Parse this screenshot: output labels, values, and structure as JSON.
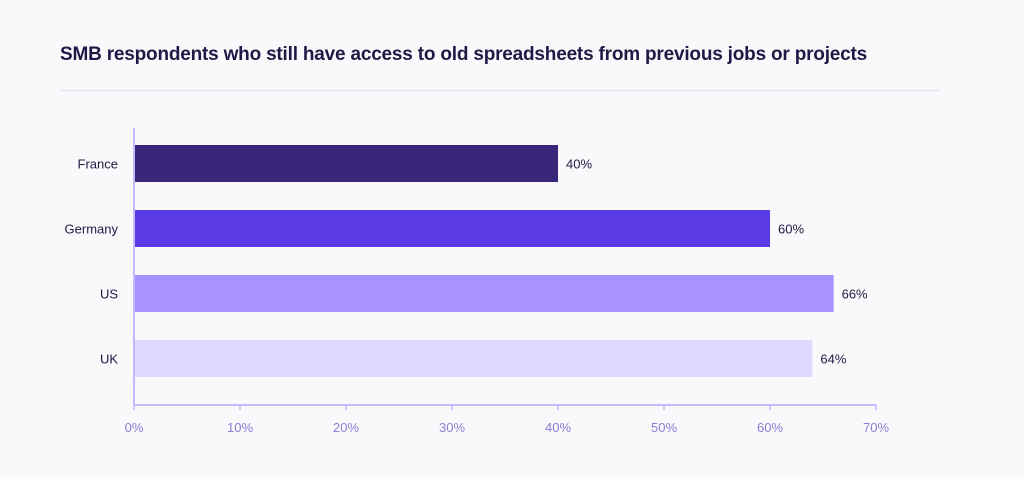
{
  "chart_data": {
    "type": "bar",
    "orientation": "horizontal",
    "title": "SMB respondents who still have access to old spreadsheets from previous jobs or projects",
    "categories": [
      "France",
      "Germany",
      "US",
      "UK"
    ],
    "values": [
      40,
      60,
      66,
      64
    ],
    "value_labels": [
      "40%",
      "60%",
      "66%",
      "64%"
    ],
    "colors": [
      "#39267a",
      "#5b3be6",
      "#a792ff",
      "#e0d9ff"
    ],
    "xlim": [
      0,
      70
    ],
    "xticks": [
      0,
      10,
      20,
      30,
      40,
      50,
      60,
      70
    ],
    "xtick_labels": [
      "0%",
      "10%",
      "20%",
      "30%",
      "40%",
      "50%",
      "60%",
      "70%"
    ],
    "xlabel": "",
    "ylabel": "",
    "grid": false,
    "axis_color": "#c4b8ff"
  }
}
